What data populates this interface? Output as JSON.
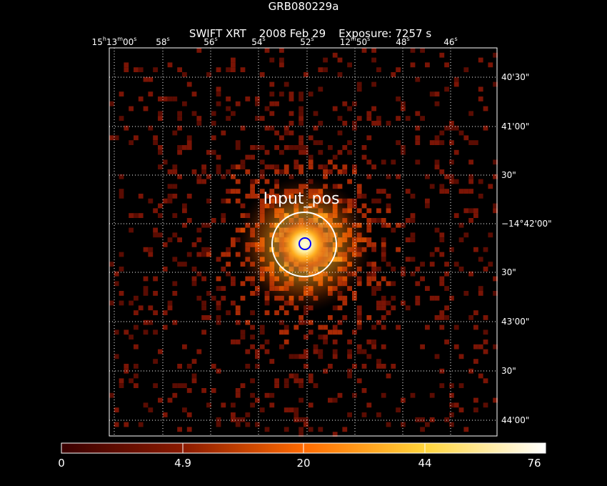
{
  "header": {
    "title": "GRB080229a",
    "instrument": "SWIFT XRT",
    "date": "2008 Feb 29",
    "exposure": "Exposure: 7257 s"
  },
  "ra_ticks": [
    {
      "h": "15",
      "m": "13",
      "s": "00",
      "label_parts": [
        "15",
        "h",
        "13",
        "m",
        "00",
        "s"
      ]
    },
    {
      "label_parts": [
        "58",
        "s"
      ]
    },
    {
      "label_parts": [
        "56",
        "s"
      ]
    },
    {
      "label_parts": [
        "54",
        "s"
      ]
    },
    {
      "label_parts": [
        "52",
        "s"
      ]
    },
    {
      "label_parts": [
        "12",
        "m",
        "50",
        "s"
      ]
    },
    {
      "label_parts": [
        "48",
        "s"
      ]
    },
    {
      "label_parts": [
        "46",
        "s"
      ]
    }
  ],
  "dec_ticks": [
    "40'30\"",
    "41'00\"",
    "30\"",
    "−14°42'00\"",
    "30\"",
    "43'00\"",
    "30\"",
    "44'00\""
  ],
  "source_label": "Input_pos",
  "colorbar": {
    "labels": [
      "0",
      "4.9",
      "20",
      "44",
      "76"
    ],
    "min": 0,
    "max": 76
  },
  "colors": {
    "background": "#000000",
    "grid": "#ffffff",
    "source_circle": "#ffffff",
    "position_circle": "#0000ff"
  }
}
